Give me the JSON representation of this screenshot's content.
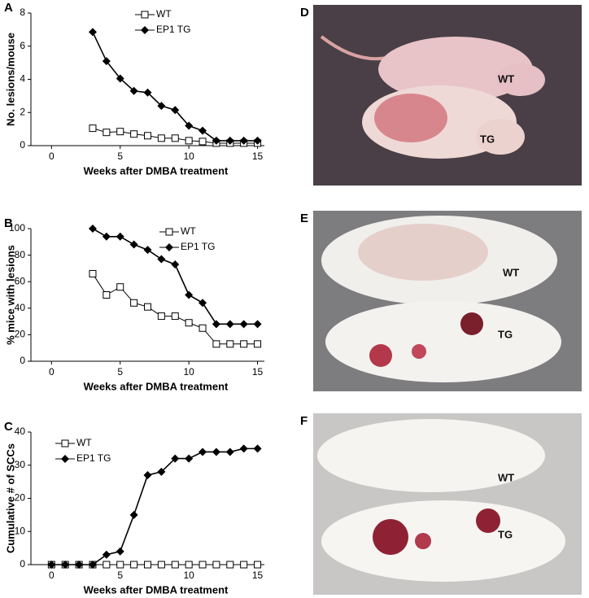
{
  "chart_data": [
    {
      "type": "line",
      "panel": "A",
      "xlabel": "Weeks after DMBA treatment",
      "ylabel": "No. lesions/mouse",
      "x": [
        3,
        4,
        5,
        6,
        7,
        8,
        9,
        10,
        11,
        12,
        13,
        14,
        15
      ],
      "series": [
        {
          "name": "WT",
          "color": "#000000",
          "marker": "square-open",
          "values": [
            1.05,
            0.8,
            0.85,
            0.7,
            0.6,
            0.45,
            0.45,
            0.3,
            0.25,
            0.15,
            0.15,
            0.15,
            0.15
          ]
        },
        {
          "name": "EP1 TG",
          "color": "#000000",
          "marker": "diamond",
          "values": [
            6.85,
            5.1,
            4.05,
            3.3,
            3.2,
            2.4,
            2.15,
            1.2,
            0.9,
            0.3,
            0.3,
            0.3,
            0.3
          ]
        }
      ],
      "xlim": [
        -1.5,
        15.5
      ],
      "xticks": [
        0,
        5,
        10,
        15
      ],
      "ylim": [
        0,
        8
      ],
      "yticks": [
        0,
        2,
        4,
        6,
        8
      ],
      "grid": false,
      "legend": "upper center"
    },
    {
      "type": "line",
      "panel": "B",
      "xlabel": "Weeks after DMBA treatment",
      "ylabel": "% mice with lesions",
      "x": [
        3,
        4,
        5,
        6,
        7,
        8,
        9,
        10,
        11,
        12,
        13,
        14,
        15
      ],
      "series": [
        {
          "name": "WT",
          "color": "#000000",
          "marker": "square-open",
          "values": [
            66,
            50,
            56,
            44,
            41,
            34,
            34,
            29,
            25,
            13,
            13,
            13,
            13
          ]
        },
        {
          "name": "EP1 TG",
          "color": "#000000",
          "marker": "diamond",
          "values": [
            100,
            94,
            94,
            88,
            84,
            77,
            73,
            50,
            44,
            28,
            28,
            28,
            28
          ]
        }
      ],
      "xlim": [
        -1.5,
        15.5
      ],
      "xticks": [
        0,
        5,
        10,
        15
      ],
      "ylim": [
        0,
        100
      ],
      "yticks": [
        0,
        20,
        40,
        60,
        80,
        100
      ],
      "grid": false,
      "legend": "upper right"
    },
    {
      "type": "line",
      "panel": "C",
      "xlabel": "Weeks after DMBA treatment",
      "ylabel": "Cumulative # of SCCs",
      "x": [
        0,
        1,
        2,
        3,
        4,
        5,
        6,
        7,
        8,
        9,
        10,
        11,
        12,
        13,
        14,
        15
      ],
      "series": [
        {
          "name": "WT",
          "color": "#000000",
          "marker": "square-open",
          "values": [
            0,
            0,
            0,
            0,
            0,
            0,
            0,
            0,
            0,
            0,
            0,
            0,
            0,
            0,
            0,
            0
          ]
        },
        {
          "name": "EP1 TG",
          "color": "#000000",
          "marker": "diamond",
          "values": [
            0,
            0,
            0,
            0,
            3,
            4,
            15,
            27,
            28,
            32,
            32,
            34,
            34,
            34,
            35,
            35
          ]
        }
      ],
      "xlim": [
        -1.5,
        15.5
      ],
      "xticks": [
        0,
        5,
        10,
        15
      ],
      "ylim": [
        0,
        40
      ],
      "yticks": [
        0,
        10,
        20,
        30,
        40
      ],
      "grid": false,
      "legend": "upper left"
    }
  ],
  "photos": [
    {
      "panel": "D",
      "labels": [
        "WT",
        "TG"
      ]
    },
    {
      "panel": "E",
      "labels": [
        "WT",
        "TG"
      ]
    },
    {
      "panel": "F",
      "labels": [
        "WT",
        "TG"
      ]
    }
  ]
}
